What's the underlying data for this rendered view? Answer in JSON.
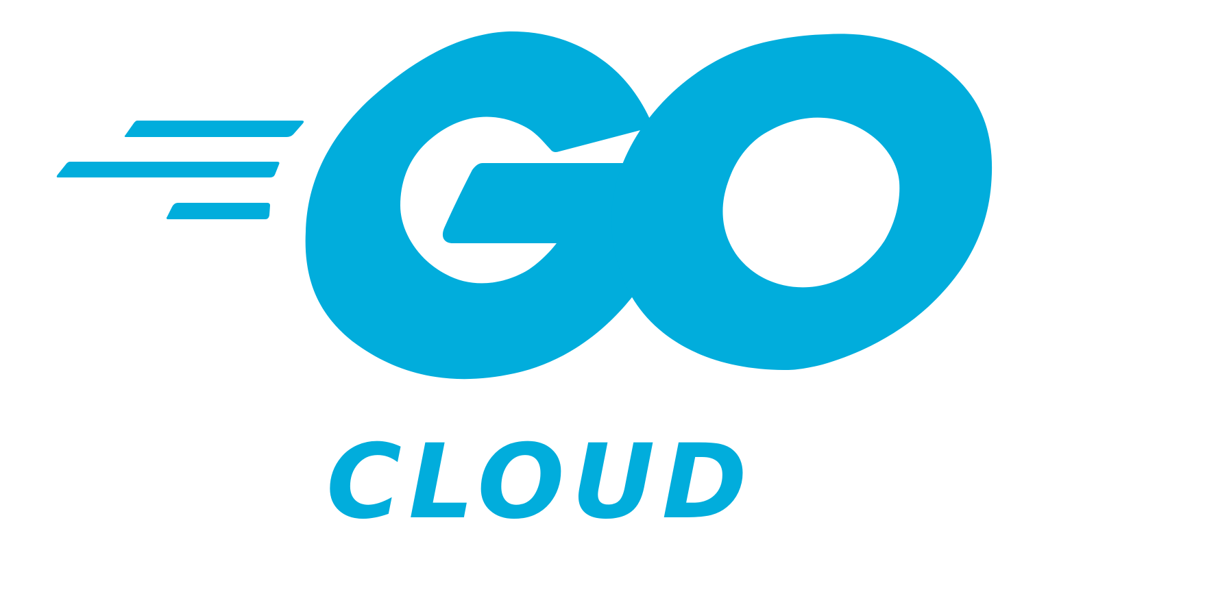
{
  "logo": {
    "wordmark": "GO",
    "subtitle": "CLOUD"
  },
  "colors": {
    "brand": "#01ADDC",
    "background": "#FFFFFF"
  },
  "icons": {
    "speed_lines": "speed-lines-icon"
  }
}
